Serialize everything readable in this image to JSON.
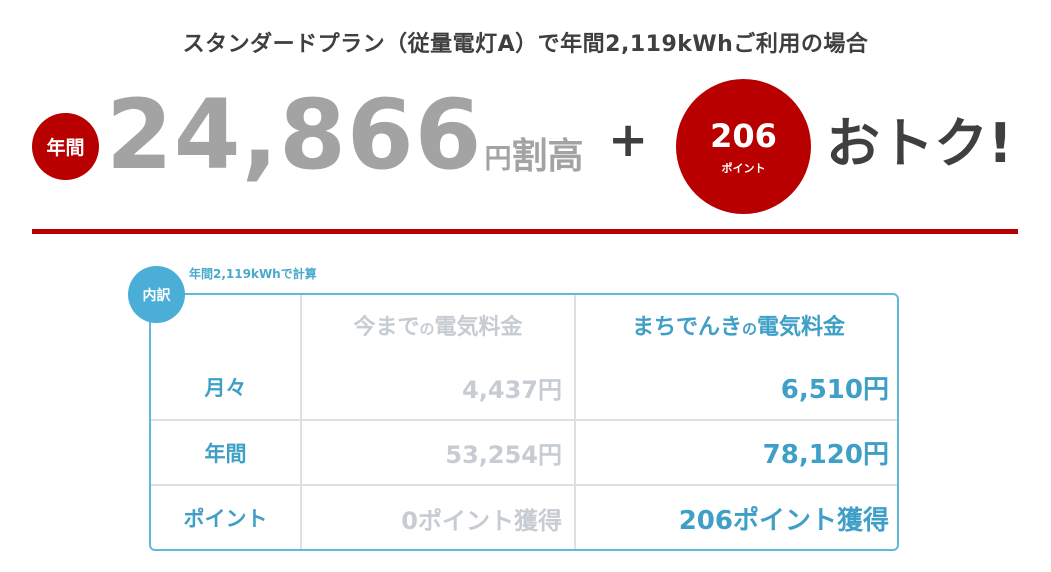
{
  "headline": "スタンダードプラン（従量電灯A）で年間2,119kWhご利用の場合",
  "summary": {
    "year_badge": "年間",
    "amount": "24,866",
    "yen": "円",
    "suffix": "割高",
    "plus": "+",
    "points_value": "206",
    "points_unit": "ポイント",
    "otoku": "おトク!"
  },
  "colors": {
    "red": "#b80000",
    "blue": "#4aaed6",
    "gray_text": "#a3a3a3",
    "muted_text": "#c6ccd2"
  },
  "breakdown": {
    "badge": "内訳",
    "note": "年間2,119kWhで計算",
    "header_old_a": "今まで",
    "header_old_b": "の",
    "header_old_c": "電気料金",
    "header_new_a": "まちでんき",
    "header_new_b": "の",
    "header_new_c": "電気料金",
    "rows": [
      {
        "label": "月々",
        "old": "4,437円",
        "new": "6,510円"
      },
      {
        "label": "年間",
        "old": "53,254円",
        "new": "78,120円"
      },
      {
        "label": "ポイント",
        "old": "0ポイント獲得",
        "new": "206ポイント獲得"
      }
    ]
  }
}
